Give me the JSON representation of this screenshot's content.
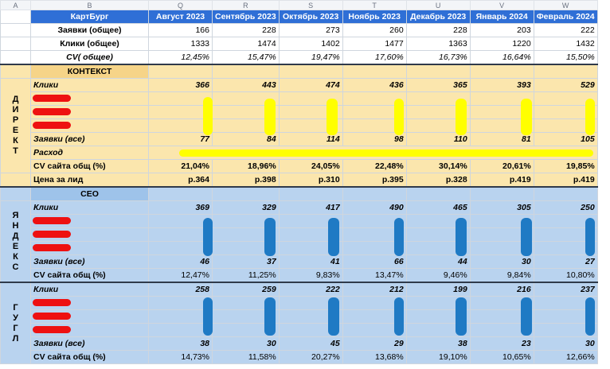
{
  "col_letters": [
    "A",
    "B",
    "Q",
    "R",
    "S",
    "T",
    "U",
    "V",
    "W"
  ],
  "title": "КартБург",
  "months": [
    "Август 2023",
    "Сентябрь 2023",
    "Октябрь 2023",
    "Ноябрь 2023",
    "Декабрь 2023",
    "Январь 2024",
    "Февраль 2024"
  ],
  "summary": [
    {
      "label": "Заявки (общее)",
      "values": [
        "166",
        "228",
        "273",
        "260",
        "228",
        "203",
        "222"
      ]
    },
    {
      "label": "Клики (общее)",
      "values": [
        "1333",
        "1474",
        "1402",
        "1477",
        "1363",
        "1220",
        "1432"
      ]
    },
    {
      "label": "CV( общее)",
      "values": [
        "12,45%",
        "15,47%",
        "19,47%",
        "17,60%",
        "16,73%",
        "16,64%",
        "15,50%"
      ]
    }
  ],
  "context": {
    "section_title": "КОНТЕКСТ",
    "vertical_label": [
      "Д",
      "И",
      "Р",
      "Е",
      "К",
      "Т"
    ],
    "clicks_label": "Клики",
    "clicks": [
      "366",
      "443",
      "474",
      "436",
      "365",
      "393",
      "529"
    ],
    "leads_label": "Заявки (все)",
    "leads": [
      "77",
      "84",
      "114",
      "98",
      "110",
      "81",
      "105"
    ],
    "spend_label": "Расход",
    "cv_label": "CV сайта общ (%)",
    "cv": [
      "21,04%",
      "18,96%",
      "24,05%",
      "22,48%",
      "30,14%",
      "20,61%",
      "19,85%"
    ],
    "cpl_label": "Цена за лид",
    "cpl": [
      "р.364",
      "р.398",
      "р.310",
      "р.395",
      "р.328",
      "р.419",
      "р.419"
    ]
  },
  "seo": {
    "section_title": "СЕО",
    "yandex": {
      "vertical_label": [
        "Я",
        "Н",
        "Д",
        "Е",
        "К",
        "С"
      ],
      "clicks_label": "Клики",
      "clicks": [
        "369",
        "329",
        "417",
        "490",
        "465",
        "305",
        "250"
      ],
      "leads_label": "Заявки (все)",
      "leads": [
        "46",
        "37",
        "41",
        "66",
        "44",
        "30",
        "27"
      ],
      "cv_label": "CV сайта общ (%)",
      "cv": [
        "12,47%",
        "11,25%",
        "9,83%",
        "13,47%",
        "9,46%",
        "9,84%",
        "10,80%"
      ]
    },
    "google": {
      "vertical_label": [
        "Г",
        "У",
        "Г",
        "Л"
      ],
      "clicks_label": "Клики",
      "clicks": [
        "258",
        "259",
        "222",
        "212",
        "199",
        "216",
        "237"
      ],
      "leads_label": "Заявки (все)",
      "leads": [
        "38",
        "30",
        "45",
        "29",
        "38",
        "23",
        "30"
      ],
      "cv_label": "CV сайта общ (%)",
      "cv": [
        "14,73%",
        "11,58%",
        "20,27%",
        "13,68%",
        "19,10%",
        "10,65%",
        "12,66%"
      ]
    }
  }
}
